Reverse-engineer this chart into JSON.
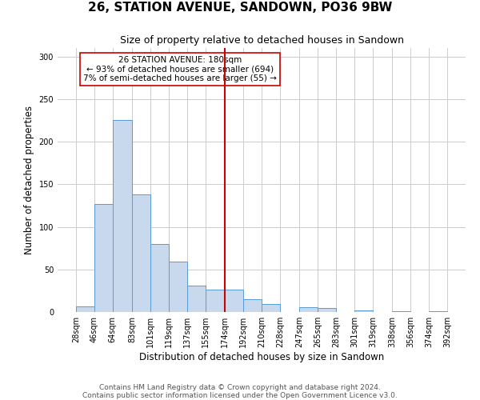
{
  "title": "26, STATION AVENUE, SANDOWN, PO36 9BW",
  "subtitle": "Size of property relative to detached houses in Sandown",
  "xlabel": "Distribution of detached houses by size in Sandown",
  "ylabel": "Number of detached properties",
  "bar_left_edges": [
    28,
    46,
    64,
    83,
    101,
    119,
    137,
    155,
    174,
    192,
    210,
    228,
    247,
    265,
    283,
    301,
    319,
    338,
    356,
    374
  ],
  "bar_widths": [
    18,
    18,
    19,
    18,
    18,
    18,
    18,
    19,
    18,
    18,
    18,
    19,
    18,
    18,
    18,
    18,
    19,
    18,
    18,
    18
  ],
  "bar_heights": [
    7,
    127,
    225,
    138,
    80,
    59,
    31,
    26,
    26,
    15,
    9,
    0,
    6,
    5,
    0,
    2,
    0,
    1,
    0,
    1
  ],
  "bar_facecolor": "#c8d9ed",
  "bar_edgecolor": "#5b9bd5",
  "vline_x": 174,
  "vline_color": "#cc0000",
  "annotation_title": "26 STATION AVENUE: 180sqm",
  "annotation_line1": "← 93% of detached houses are smaller (694)",
  "annotation_line2": "7% of semi-detached houses are larger (55) →",
  "annotation_box_color": "#cc0000",
  "annotation_bg": "#ffffff",
  "xlim": [
    10,
    410
  ],
  "ylim": [
    0,
    310
  ],
  "xtick_labels": [
    "28sqm",
    "46sqm",
    "64sqm",
    "83sqm",
    "101sqm",
    "119sqm",
    "137sqm",
    "155sqm",
    "174sqm",
    "192sqm",
    "210sqm",
    "228sqm",
    "247sqm",
    "265sqm",
    "283sqm",
    "301sqm",
    "319sqm",
    "338sqm",
    "356sqm",
    "374sqm",
    "392sqm"
  ],
  "xtick_positions": [
    28,
    46,
    64,
    83,
    101,
    119,
    137,
    155,
    174,
    192,
    210,
    228,
    247,
    265,
    283,
    301,
    319,
    338,
    356,
    374,
    392
  ],
  "ytick_positions": [
    0,
    50,
    100,
    150,
    200,
    250,
    300
  ],
  "grid_color": "#cccccc",
  "background_color": "#ffffff",
  "footer_line1": "Contains HM Land Registry data © Crown copyright and database right 2024.",
  "footer_line2": "Contains public sector information licensed under the Open Government Licence v3.0.",
  "title_fontsize": 11,
  "subtitle_fontsize": 9,
  "axis_label_fontsize": 8.5,
  "tick_fontsize": 7,
  "annotation_fontsize": 7.5,
  "footer_fontsize": 6.5
}
